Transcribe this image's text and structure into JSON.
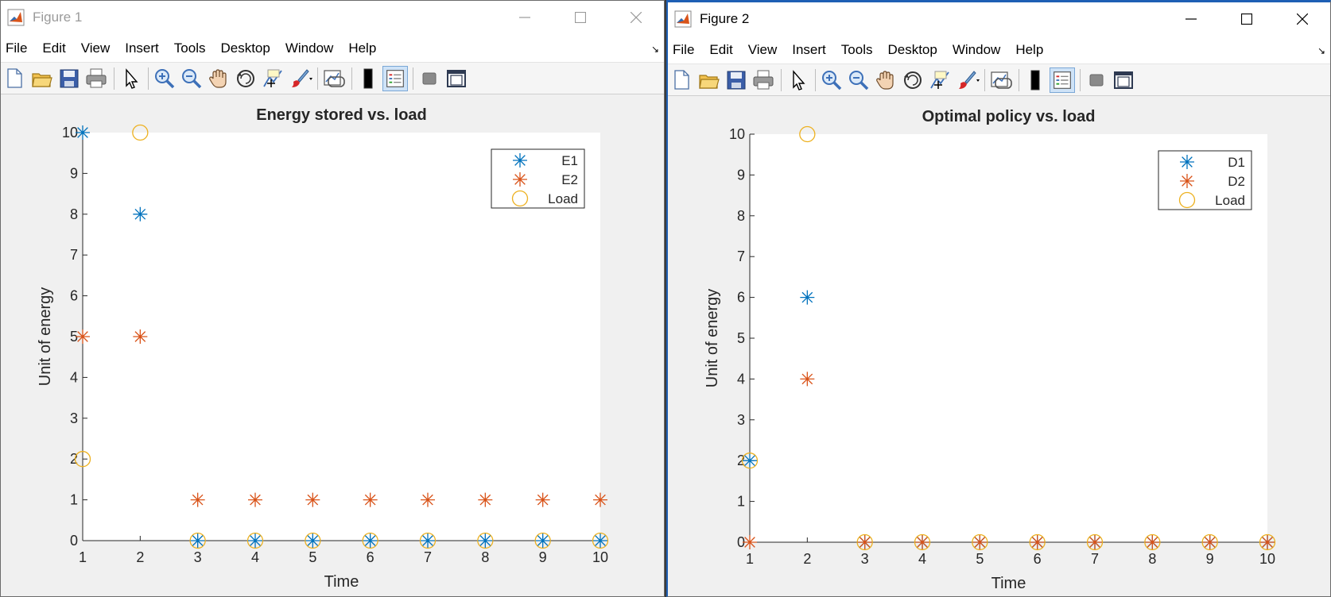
{
  "menus": [
    "File",
    "Edit",
    "View",
    "Insert",
    "Tools",
    "Desktop",
    "Window",
    "Help"
  ],
  "toolbar_icons": [
    "new-figure-icon",
    "open-file-icon",
    "save-icon",
    "print-icon",
    "pointer-icon",
    "zoom-in-icon",
    "zoom-out-icon",
    "pan-hand-icon",
    "rotate-3d-icon",
    "data-cursor-icon",
    "brush-icon",
    "link-plot-icon",
    "colorbar-icon",
    "legend-icon",
    "hide-tools-icon",
    "show-tools-icon"
  ],
  "figures": [
    {
      "window_title": "Figure 1",
      "active": false,
      "chart_data": {
        "type": "scatter",
        "title": "Energy stored vs. load",
        "xlabel": "Time",
        "ylabel": "Unit of energy",
        "xlim": [
          1,
          10
        ],
        "ylim": [
          0,
          10
        ],
        "xticks": [
          1,
          2,
          3,
          4,
          5,
          6,
          7,
          8,
          9,
          10
        ],
        "yticks": [
          0,
          1,
          2,
          3,
          4,
          5,
          6,
          7,
          8,
          9,
          10
        ],
        "grid": false,
        "legend_position": "top-right",
        "x": [
          1,
          2,
          3,
          4,
          5,
          6,
          7,
          8,
          9,
          10
        ],
        "series": [
          {
            "name": "E1",
            "marker": "asterisk",
            "color": "#0072BD",
            "values": [
              10,
              8,
              0,
              0,
              0,
              0,
              0,
              0,
              0,
              0
            ]
          },
          {
            "name": "E2",
            "marker": "asterisk",
            "color": "#D95319",
            "values": [
              5,
              5,
              1,
              1,
              1,
              1,
              1,
              1,
              1,
              1
            ]
          },
          {
            "name": "Load",
            "marker": "circle",
            "color": "#EDB120",
            "values": [
              2,
              10,
              0,
              0,
              0,
              0,
              0,
              0,
              0,
              0
            ]
          }
        ]
      }
    },
    {
      "window_title": "Figure 2",
      "active": true,
      "chart_data": {
        "type": "scatter",
        "title": "Optimal policy vs. load",
        "xlabel": "Time",
        "ylabel": "Unit of energy",
        "xlim": [
          1,
          10
        ],
        "ylim": [
          0,
          10
        ],
        "xticks": [
          1,
          2,
          3,
          4,
          5,
          6,
          7,
          8,
          9,
          10
        ],
        "yticks": [
          0,
          1,
          2,
          3,
          4,
          5,
          6,
          7,
          8,
          9,
          10
        ],
        "grid": false,
        "legend_position": "top-right",
        "x": [
          1,
          2,
          3,
          4,
          5,
          6,
          7,
          8,
          9,
          10
        ],
        "series": [
          {
            "name": "D1",
            "marker": "asterisk",
            "color": "#0072BD",
            "values": [
              2,
              6,
              0,
              0,
              0,
              0,
              0,
              0,
              0,
              0
            ]
          },
          {
            "name": "D2",
            "marker": "asterisk",
            "color": "#D95319",
            "values": [
              0,
              4,
              0,
              0,
              0,
              0,
              0,
              0,
              0,
              0
            ]
          },
          {
            "name": "Load",
            "marker": "circle",
            "color": "#EDB120",
            "values": [
              2,
              10,
              0,
              0,
              0,
              0,
              0,
              0,
              0,
              0
            ]
          }
        ]
      }
    }
  ]
}
